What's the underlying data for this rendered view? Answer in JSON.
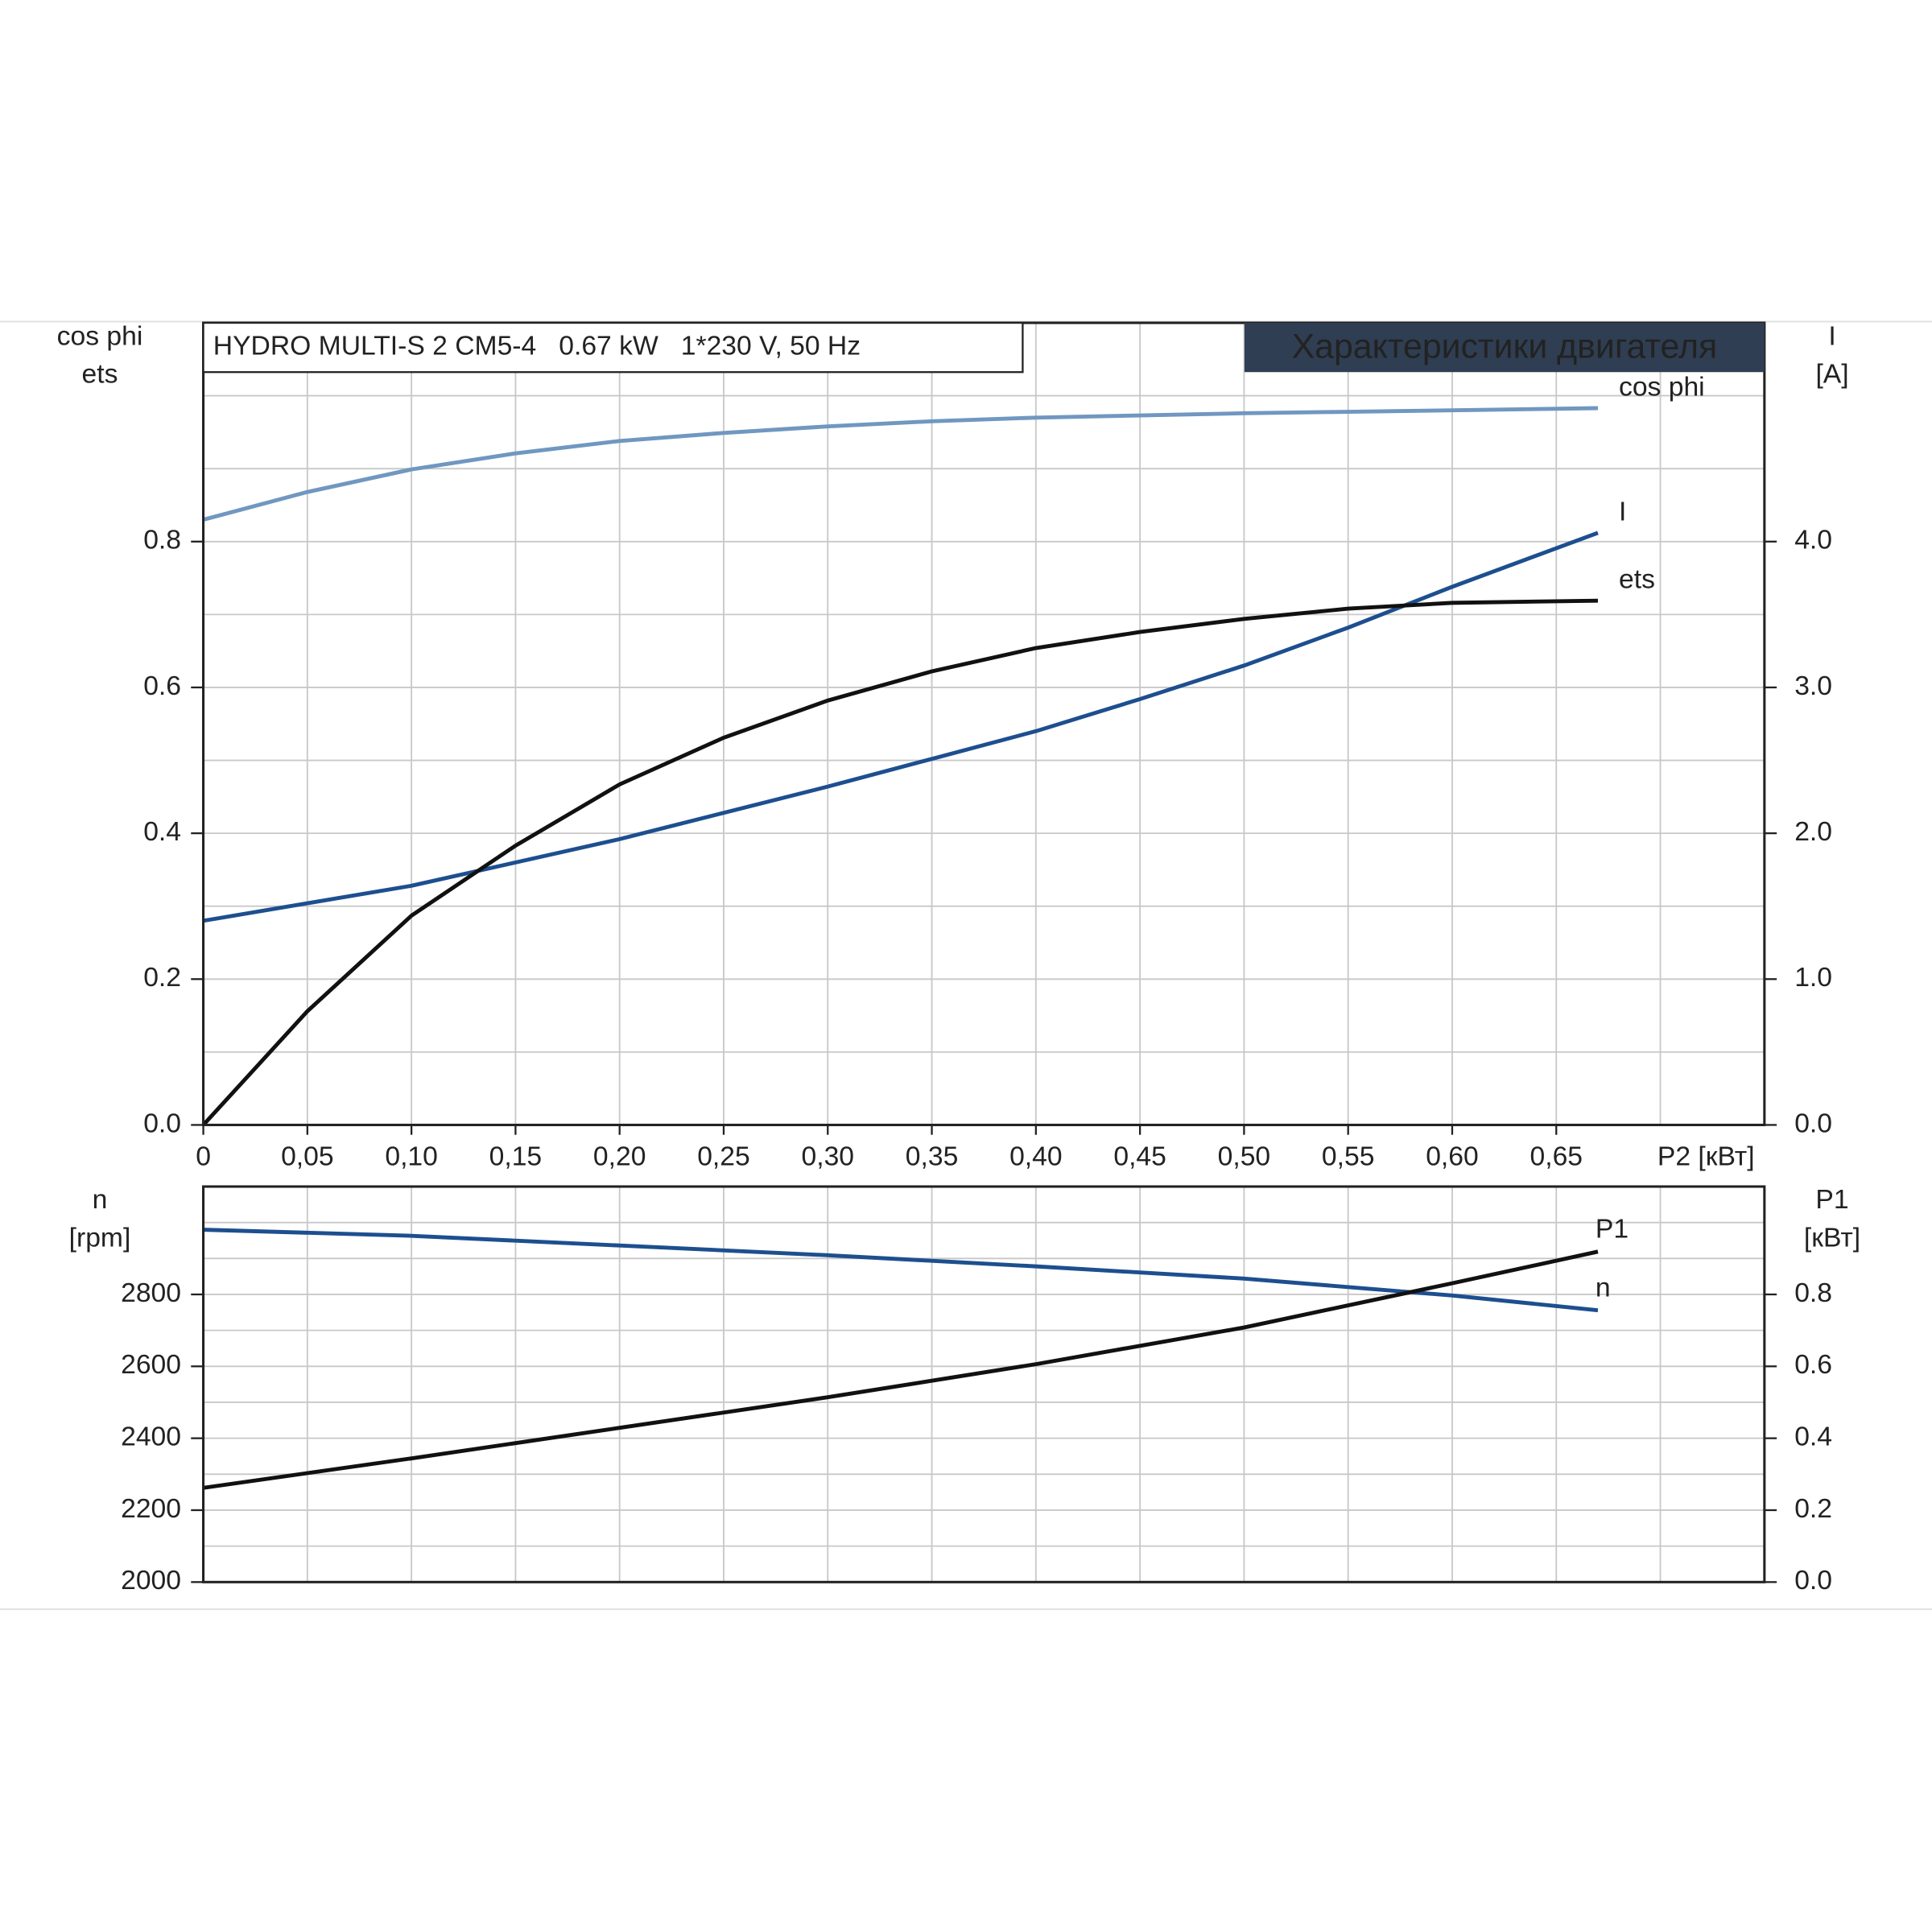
{
  "chart_data": [
    {
      "type": "line",
      "title": "HYDRO MULTI-S 2 CM5-4   0.67 kW   1*230 V, 50 Hz",
      "subtitle": "Характеристики двигателя",
      "xlabel": "P2 [кВт]",
      "ylabel": [
        "cos phi",
        "ets"
      ],
      "y2label": [
        "I",
        "[A]"
      ],
      "x": [
        0,
        0.05,
        0.1,
        0.15,
        0.2,
        0.25,
        0.3,
        0.35,
        0.4,
        0.45,
        0.5,
        0.55,
        0.6,
        0.67
      ],
      "xlim": [
        0,
        0.75
      ],
      "xticks": [
        0,
        {
          "value": 0.05,
          "label": "0,05"
        },
        {
          "value": 0.1,
          "label": "0,10"
        },
        {
          "value": 0.15,
          "label": "0,15"
        },
        {
          "value": 0.2,
          "label": "0,20"
        },
        {
          "value": 0.25,
          "label": "0,25"
        },
        {
          "value": 0.3,
          "label": "0,30"
        },
        {
          "value": 0.35,
          "label": "0,35"
        },
        {
          "value": 0.4,
          "label": "0,40"
        },
        {
          "value": 0.45,
          "label": "0,45"
        },
        {
          "value": 0.5,
          "label": "0,50"
        },
        {
          "value": 0.55,
          "label": "0,55"
        },
        {
          "value": 0.6,
          "label": "0,60"
        },
        {
          "value": 0.65,
          "label": "0,65"
        }
      ],
      "xminorticks": [
        0.7
      ],
      "ylim": [
        0,
        1.1
      ],
      "yticks": [
        {
          "value": 0,
          "label": "0.0"
        },
        0.2,
        0.4,
        0.6,
        0.8
      ],
      "yminorticks": [
        0.1,
        0.3,
        0.5,
        0.7,
        0.9,
        1.0
      ],
      "y2lim": [
        0,
        5.5
      ],
      "y2ticks": [
        {
          "value": 0,
          "label": "0.0"
        },
        {
          "value": 1,
          "label": "1.0"
        },
        {
          "value": 2,
          "label": "2.0"
        },
        {
          "value": 3,
          "label": "3.0"
        },
        {
          "value": 4,
          "label": "4.0"
        }
      ],
      "grid": true,
      "series": [
        {
          "name": "cos phi",
          "color": "#7097c0",
          "values": [
            0.83,
            0.868,
            0.899,
            0.921,
            0.938,
            0.949,
            0.958,
            0.965,
            0.97,
            0.973,
            0.976,
            0.978,
            0.98,
            0.983
          ]
        },
        {
          "name": "I",
          "color": "#1d4f8f",
          "axis": "y2",
          "values": [
            1.4,
            1.52,
            1.64,
            1.8,
            1.96,
            2.14,
            2.32,
            2.51,
            2.7,
            2.92,
            3.15,
            3.41,
            3.69,
            4.06
          ]
        },
        {
          "name": "ets",
          "color": "#111111",
          "values": [
            0,
            0.156,
            0.287,
            0.383,
            0.467,
            0.531,
            0.582,
            0.622,
            0.654,
            0.676,
            0.694,
            0.708,
            0.716,
            0.719
          ]
        }
      ]
    },
    {
      "type": "line",
      "ylabel": [
        "n",
        "[rpm]"
      ],
      "y2label": [
        "P1",
        "[кВт]"
      ],
      "x": [
        0,
        0.1,
        0.2,
        0.3,
        0.4,
        0.5,
        0.6,
        0.67
      ],
      "xlim": [
        0,
        0.75
      ],
      "xminorticks": [
        0.05,
        0.1,
        0.15,
        0.2,
        0.25,
        0.3,
        0.35,
        0.4,
        0.45,
        0.5,
        0.55,
        0.6,
        0.65,
        0.7
      ],
      "ylim": [
        2000,
        3100
      ],
      "yticks": [
        2000,
        2200,
        2400,
        2600,
        2800
      ],
      "yminorticks": [
        2100,
        2300,
        2500,
        2700,
        2900,
        3000
      ],
      "y2lim": [
        0,
        1.1
      ],
      "y2ticks": [
        {
          "value": 0,
          "label": "0.0"
        },
        0.2,
        0.4,
        0.6,
        0.8
      ],
      "grid": true,
      "series": [
        {
          "name": "n",
          "color": "#1d4f8f",
          "values": [
            2980,
            2963,
            2936,
            2909,
            2878,
            2844,
            2797,
            2756
          ]
        },
        {
          "name": "P1",
          "color": "#111111",
          "axis": "y2",
          "values": [
            0.262,
            0.344,
            0.429,
            0.514,
            0.606,
            0.708,
            0.831,
            0.919
          ]
        }
      ]
    }
  ]
}
